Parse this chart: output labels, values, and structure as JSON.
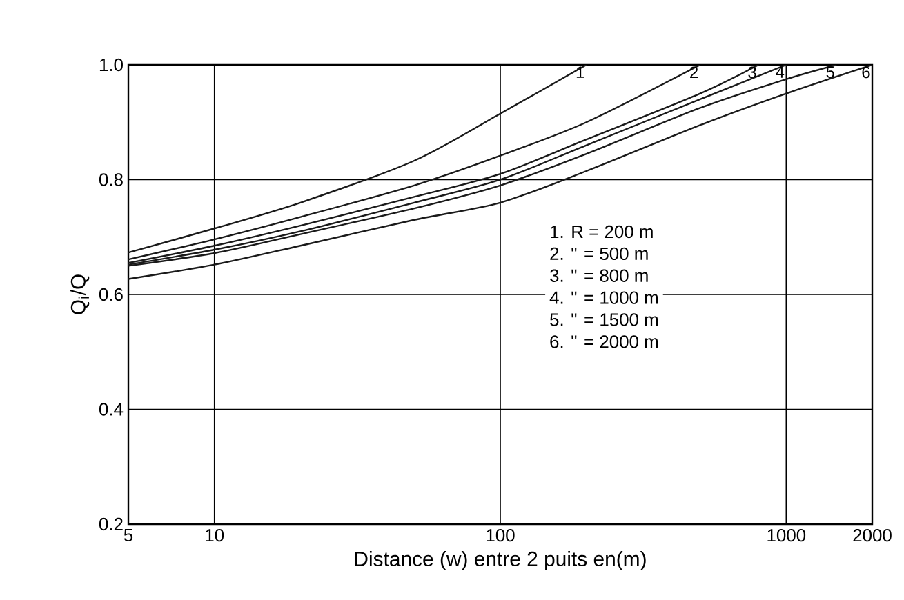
{
  "chart_data": {
    "type": "line",
    "xlabel": "Distance (w) entre 2 puits en(m)",
    "ylabel": "Q$_{i}$/Q",
    "log": "x",
    "xlim": [
      5,
      2000
    ],
    "ylim": [
      0.2,
      1.0
    ],
    "xticks": [
      5,
      10,
      100,
      1000,
      2000
    ],
    "yticks": [
      {
        "value": 0.2,
        "label": "0.2"
      },
      {
        "value": 0.4,
        "label": "0.4"
      },
      {
        "value": 0.6,
        "label": "0.6"
      },
      {
        "value": 0.8,
        "label": "0.8"
      },
      {
        "value": 1.0,
        "label": "1.0"
      }
    ],
    "grid": true,
    "marker": "none",
    "line_style": "solid",
    "series": [
      {
        "name": "1",
        "color": "#1a1a1a",
        "x": [
          5,
          10,
          20,
          50,
          100,
          200
        ],
        "values": [
          0.673,
          0.715,
          0.76,
          0.833,
          0.915,
          1.0
        ]
      },
      {
        "name": "2",
        "color": "#1a1a1a",
        "x": [
          5,
          10,
          20,
          50,
          100,
          200,
          500
        ],
        "values": [
          0.661,
          0.696,
          0.735,
          0.79,
          0.842,
          0.9,
          1.0
        ]
      },
      {
        "name": "3",
        "color": "#1a1a1a",
        "x": [
          5,
          10,
          20,
          50,
          100,
          200,
          500,
          800
        ],
        "values": [
          0.655,
          0.685,
          0.72,
          0.77,
          0.81,
          0.87,
          0.95,
          1.0
        ]
      },
      {
        "name": "4",
        "color": "#1a1a1a",
        "x": [
          5,
          10,
          20,
          50,
          100,
          200,
          500,
          1000
        ],
        "values": [
          0.652,
          0.678,
          0.71,
          0.76,
          0.8,
          0.86,
          0.94,
          1.0
        ]
      },
      {
        "name": "5",
        "color": "#1a1a1a",
        "x": [
          5,
          10,
          20,
          50,
          100,
          200,
          500,
          1000,
          1500
        ],
        "values": [
          0.65,
          0.672,
          0.705,
          0.75,
          0.79,
          0.845,
          0.925,
          0.975,
          1.0
        ]
      },
      {
        "name": "6",
        "color": "#1a1a1a",
        "x": [
          5,
          10,
          20,
          50,
          100,
          200,
          500,
          1000,
          2000
        ],
        "values": [
          0.627,
          0.652,
          0.685,
          0.73,
          0.76,
          0.815,
          0.895,
          0.95,
          1.0
        ]
      }
    ],
    "annotations": [
      "1. R = 200 m",
      "2. \" = 500 m",
      "3. \" = 800 m",
      "4. \" = 1000 m",
      "5. \" = 1500 m",
      "6. \" = 2000 m"
    ]
  }
}
